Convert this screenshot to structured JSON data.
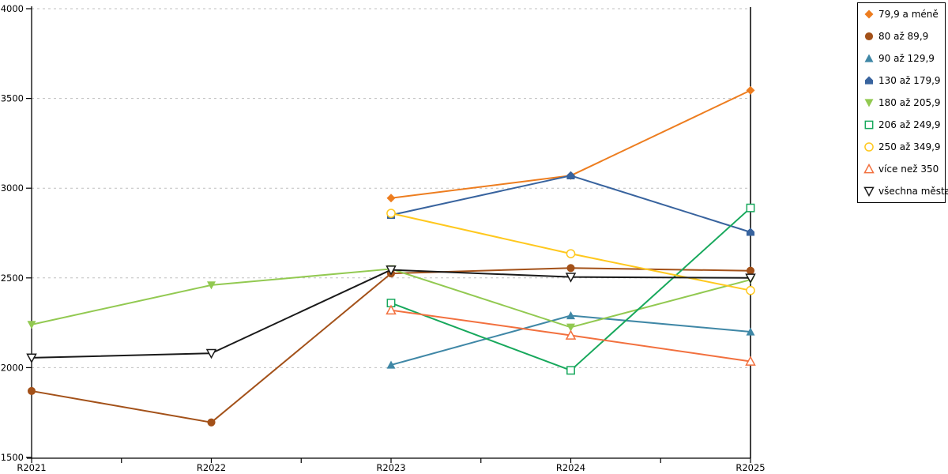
{
  "chart": {
    "background_color": "#ffffff",
    "axis_color": "#000000",
    "grid_color": "#bfbfbf",
    "y_tick_labels": [
      "1500",
      "2000",
      "2500",
      "3000",
      "3500",
      "4000"
    ],
    "x_tick_labels": [
      "R2021",
      "R2022",
      "R2023",
      "R2024",
      "R2025"
    ]
  },
  "chart_data": {
    "type": "line",
    "title": "",
    "xlabel": "",
    "ylabel": "",
    "categories": [
      "R2021",
      "R2022",
      "R2023",
      "R2024",
      "R2025"
    ],
    "ylim": [
      1500,
      4000
    ],
    "y_tick_step": 500,
    "grid": "horizontal dashed gridlines at 2000/2500/3000/3500/4000",
    "legend_position": "top-right, bordered box",
    "series": [
      {
        "name": "79,9 a méně",
        "color": "#ED7D1F",
        "marker": "diamond",
        "marker_style": "filled",
        "values": [
          null,
          null,
          2945,
          3070,
          3545
        ]
      },
      {
        "name": "80 až 89,9",
        "color": "#A35119",
        "marker": "circle",
        "marker_style": "filled",
        "values": [
          1870,
          1695,
          2525,
          2555,
          2540
        ]
      },
      {
        "name": "90 až 129,9",
        "color": "#3F87A6",
        "marker": "triangle-up",
        "marker_style": "filled",
        "values": [
          null,
          null,
          2015,
          2290,
          2200
        ]
      },
      {
        "name": "130 až 179,9",
        "color": "#38639E",
        "marker": "pentagon-up",
        "marker_style": "filled",
        "values": [
          null,
          null,
          2850,
          3070,
          2755
        ]
      },
      {
        "name": "180 až 205,9",
        "color": "#92C951",
        "marker": "triangle-down",
        "marker_style": "filled",
        "values": [
          2240,
          2460,
          2550,
          2225,
          2490
        ]
      },
      {
        "name": "206 až 249,9",
        "color": "#17A85C",
        "marker": "square",
        "marker_style": "open",
        "values": [
          null,
          null,
          2360,
          1985,
          2890
        ]
      },
      {
        "name": "250 až 349,9",
        "color": "#FFC81E",
        "marker": "circle",
        "marker_style": "open",
        "values": [
          null,
          null,
          2860,
          2635,
          2430
        ]
      },
      {
        "name": "více než 350",
        "color": "#F2703E",
        "marker": "triangle-up",
        "marker_style": "open",
        "values": [
          null,
          null,
          2320,
          2180,
          2035
        ]
      },
      {
        "name": "všechna města",
        "color": "#1A1A1A",
        "marker": "triangle-down",
        "marker_style": "open",
        "values": [
          2055,
          2080,
          2545,
          2505,
          2500
        ]
      }
    ]
  }
}
